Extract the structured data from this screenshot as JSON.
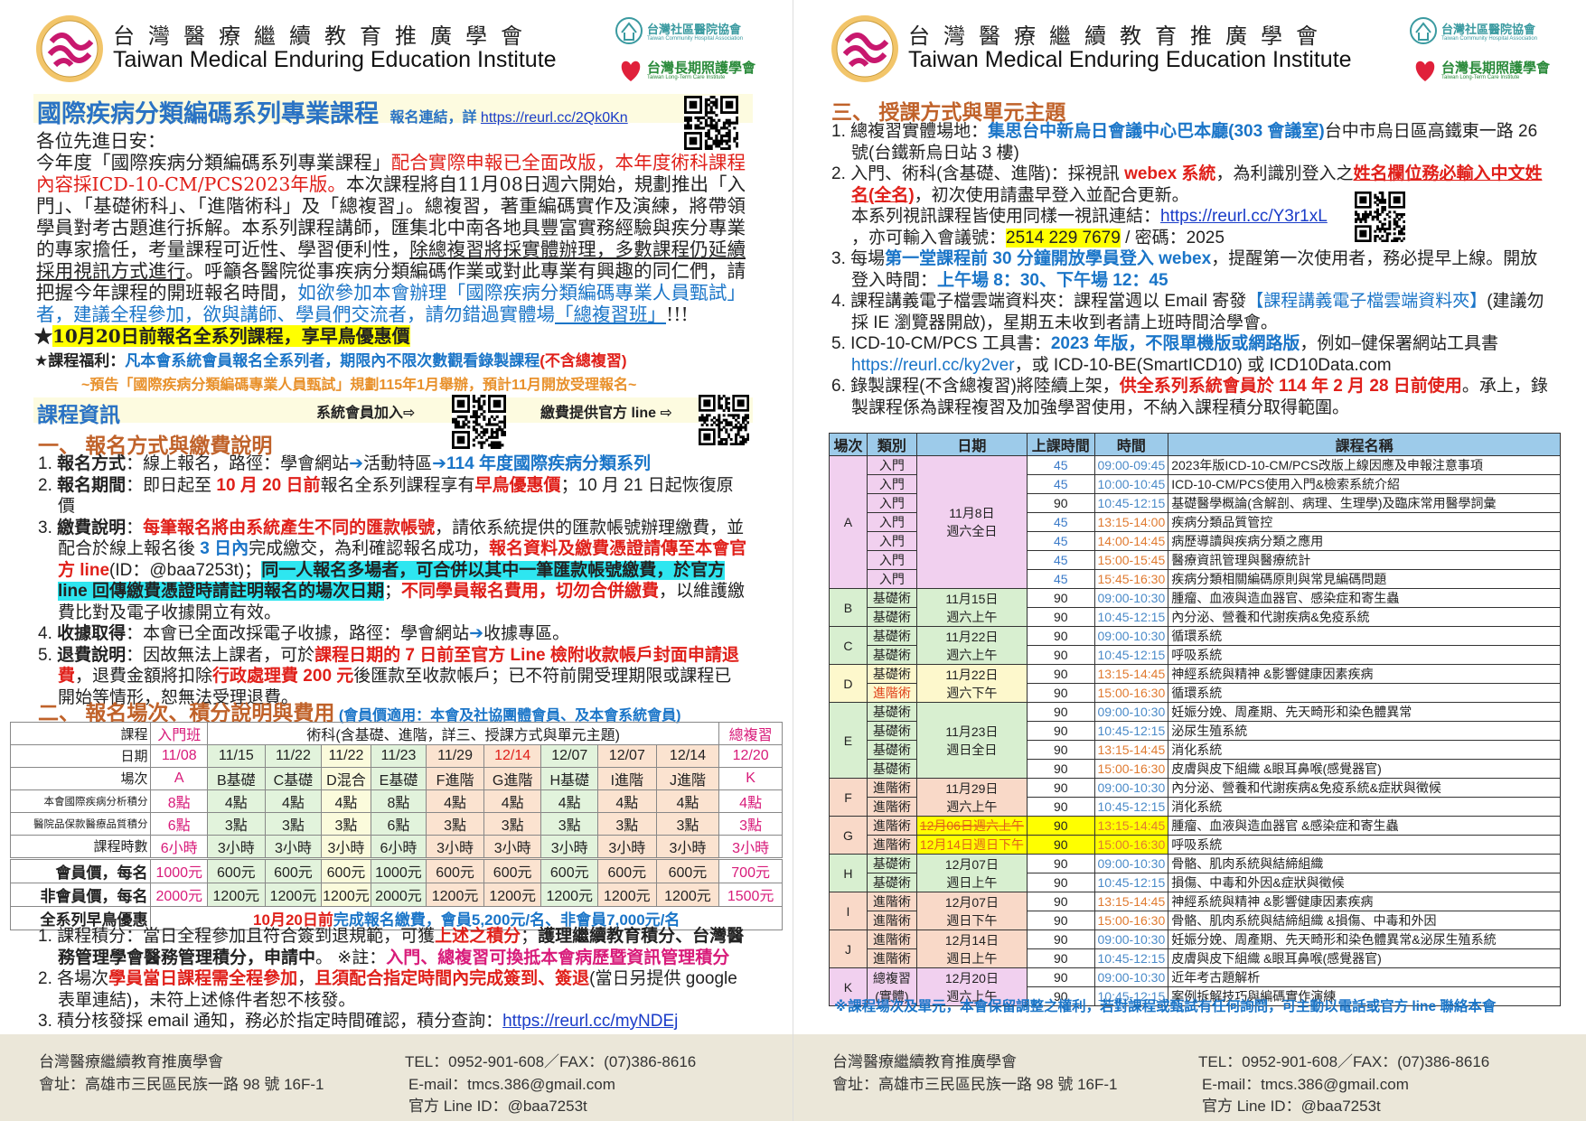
{
  "org": {
    "name_cn": "台灣醫療繼續教育推廣學會",
    "name_en": "Taiwan Medical Enduring Education Institute",
    "partner1_cn": "台灣社區醫院協會",
    "partner1_en": "Taiwan Community Hospital Association",
    "partner2_cn": "台灣長期照護學會",
    "partner2_en": "Taiwan Long-Term Care Institute"
  },
  "colors": {
    "title_blue": "#2a73c4",
    "section_orange": "#c0622a",
    "red": "#e0201a",
    "blue": "#1a75c8",
    "footer_bg": "#ebe7d9"
  },
  "left": {
    "title": "國際疾病分類編碼系列專業課程",
    "reg_label": "報名連結，詳",
    "reg_link": "https://reurl.cc/2Qk0Kn",
    "greeting": "各位先進日安：",
    "intro": [
      {
        "t": "今年度「國際疾病分類編碼系列專業課程」"
      },
      {
        "t": "配合實際申報已全面改版，本年度術科課程內容採ICD-10-CM/PCS2023年版。",
        "c": "red"
      },
      {
        "t": "本次課程將自11月08日週六開始，規劃推出「入門」、「基礎術科」、「進階術科」及「總複習」。總複習，著重編碼實作及演練，將帶領學員對考古題進行拆解。本系列課程講師，匯集北中南各地具豐富實務經驗與疾分專業的專家擔任，考量課程可近性、學習便利性，"
      },
      {
        "t": "除總複習將採實體辦理，多數課程仍延續採用視訊方式進行",
        "c": "u"
      },
      {
        "t": "。呼籲各醫院從事疾病分類編碼作業或對此專業有興趣的同仁們，請把握今年課程的開班報名時間，"
      },
      {
        "t": "如欲參加本會辦理「國際疾病分類編碼專業人員甄試」者，建議全程參加，欲與講師、學員們交流者，請勿錯過實體場",
        "c": "blue"
      },
      {
        "t": "「總複習班」",
        "c": "blue u"
      },
      {
        "t": "!!!"
      }
    ],
    "early_bird": [
      {
        "t": "★"
      },
      {
        "t": "10月20日前報名全系列課程，享早鳥優惠價",
        "c": "hly"
      }
    ],
    "benefit": [
      {
        "t": "★課程福利：",
        "c": "b"
      },
      {
        "t": "凡本會系統會員報名全系列者，期限內不限次數觀看錄製課程",
        "c": "blue b"
      },
      {
        "t": "(不含總複習)",
        "c": "red b"
      }
    ],
    "notice": "~預告「國際疾病分類編碼專業人員甄試」規劃115年1月舉辦，預計11月開放受理報名~",
    "info_bar": {
      "title": "課程資訊",
      "member_join": "系統會員加入⇨",
      "line_pay": "繳費提供官方 line ⇨"
    },
    "section1": {
      "heading": "一、 報名方式與繳費說明",
      "items": [
        [
          {
            "t": "1. "
          },
          {
            "t": "報名方式",
            "c": "b"
          },
          {
            "t": "：線上報名，路徑：學會網站"
          },
          {
            "t": "➔",
            "c": "blue b"
          },
          {
            "t": "活動特區"
          },
          {
            "t": "➔114 年度國際疾病分類系列",
            "c": "blue b"
          }
        ],
        [
          {
            "t": "2. "
          },
          {
            "t": "報名期間",
            "c": "b"
          },
          {
            "t": "：即日起至 "
          },
          {
            "t": "10 月 20 日前",
            "c": "red b"
          },
          {
            "t": "報名全系列課程享有"
          },
          {
            "t": "早鳥優惠價",
            "c": "red b"
          },
          {
            "t": "；10 月 21 日起恢復原價"
          }
        ],
        [
          {
            "t": "3. "
          },
          {
            "t": "繳費說明",
            "c": "b"
          },
          {
            "t": "："
          },
          {
            "t": "每筆報名將由系統產生不同的匯款帳號",
            "c": "red b"
          },
          {
            "t": "，請依系統提供的匯款帳號辦理繳費，並配合於線上報名後 "
          },
          {
            "t": "3 日內",
            "c": "blue b"
          },
          {
            "t": "完成繳交，為利確認報名成功，"
          },
          {
            "t": "報名資料及繳費憑證請傳至本會官方 line",
            "c": "red b"
          },
          {
            "t": "(ID：@baa7253t)；"
          },
          {
            "t": "同一人報名多場者，可合併以其中一筆匯款帳號繳費，於官方 line 回傳繳費憑證時請註明報名的場次日期",
            "c": "hlc b"
          },
          {
            "t": "；"
          },
          {
            "t": "不同學員報名費用，切勿合併繳費",
            "c": "red b"
          },
          {
            "t": "，以維護繳費比對及電子收據開立有效。"
          }
        ],
        [
          {
            "t": "4. "
          },
          {
            "t": "收據取得",
            "c": "b"
          },
          {
            "t": "：本會已全面改採電子收據，路徑：學會網站"
          },
          {
            "t": "➔",
            "c": "blue b"
          },
          {
            "t": "收據專區。"
          }
        ],
        [
          {
            "t": "5. "
          },
          {
            "t": "退費說明",
            "c": "b"
          },
          {
            "t": "：因故無法上課者，可於"
          },
          {
            "t": "課程日期的 7 日前至官方 Line 檢附收款帳戶封面申請退費",
            "c": "red b"
          },
          {
            "t": "，退費金額將扣除"
          },
          {
            "t": "行政處理費 200 元",
            "c": "red b"
          },
          {
            "t": "後匯款至收款帳戶；已不符前開受理期限或課程已開始等情形，恕無法受理退費。"
          }
        ]
      ]
    },
    "section2": {
      "heading": "二、 報名場次、積分說明與費用",
      "sub": "(會員價適用：本會及社協團體會員、及本會系統會員)"
    },
    "fee_table": {
      "row_labels": [
        "課程",
        "日期",
        "場次",
        "本會國際疾病分析積分",
        "醫院品保款醫療品質積分",
        "課程時數",
        "會員價，每名",
        "非會員價，每名",
        "全系列早鳥優惠"
      ],
      "group_intro": "入門班",
      "group_skill": "術科(含基礎、進階，詳三、授課方式與單元主題)",
      "group_review": "總複習",
      "columns": [
        {
          "date": "11/08",
          "session": "A",
          "pts1": "8點",
          "pts2": "6點",
          "hours": "6小時",
          "member": "1000元",
          "nonmember": "2000元",
          "tone": "intro"
        },
        {
          "date": "11/15",
          "session": "B基礎",
          "pts1": "4點",
          "pts2": "3點",
          "hours": "3小時",
          "member": "600元",
          "nonmember": "1200元",
          "tone": "green"
        },
        {
          "date": "11/22",
          "session": "C基礎",
          "pts1": "4點",
          "pts2": "3點",
          "hours": "3小時",
          "member": "600元",
          "nonmember": "1200元",
          "tone": "green"
        },
        {
          "date": "11/22",
          "session": "D混合",
          "pts1": "4點",
          "pts2": "3點",
          "hours": "3小時",
          "member": "600元",
          "nonmember": "1200元",
          "tone": "yellow"
        },
        {
          "date": "11/23",
          "session": "E基礎",
          "pts1": "8點",
          "pts2": "6點",
          "hours": "6小時",
          "member": "1000元",
          "nonmember": "2000元",
          "tone": "green"
        },
        {
          "date": "11/29",
          "session": "F進階",
          "pts1": "4點",
          "pts2": "3點",
          "hours": "3小時",
          "member": "600元",
          "nonmember": "1200元",
          "tone": "peach"
        },
        {
          "date": "12/14",
          "session": "G進階",
          "pts1": "4點",
          "pts2": "3點",
          "hours": "3小時",
          "member": "600元",
          "nonmember": "1200元",
          "tone": "peach",
          "date_red": true
        },
        {
          "date": "12/07",
          "session": "H基礎",
          "pts1": "4點",
          "pts2": "3點",
          "hours": "3小時",
          "member": "600元",
          "nonmember": "1200元",
          "tone": "green"
        },
        {
          "date": "12/07",
          "session": "I進階",
          "pts1": "4點",
          "pts2": "3點",
          "hours": "3小時",
          "member": "600元",
          "nonmember": "1200元",
          "tone": "peach"
        },
        {
          "date": "12/14",
          "session": "J進階",
          "pts1": "4點",
          "pts2": "3點",
          "hours": "3小時",
          "member": "600元",
          "nonmember": "1200元",
          "tone": "peach"
        },
        {
          "date": "12/20",
          "session": "K",
          "pts1": "4點",
          "pts2": "3點",
          "hours": "3小時",
          "member": "700元",
          "nonmember": "1500元",
          "tone": "review"
        }
      ],
      "early_bird": [
        {
          "t": "10月20日前",
          "c": "red b"
        },
        {
          "t": "完成報名繳費，會員5,200元/名、非會員7,000元/名",
          "c": "blue b"
        }
      ]
    },
    "notes": [
      [
        {
          "t": "1. 課程積分：當日全程參加且符合簽到退規範，可獲"
        },
        {
          "t": "上述之積分",
          "c": "red b"
        },
        {
          "t": "；"
        },
        {
          "t": "護理繼續教育積分、台灣醫務管理學會醫務管理積分，申請中",
          "c": "b"
        },
        {
          "t": "。 ※註："
        },
        {
          "t": "入門、總複習可換抵本會病歷暨資訊管理積分",
          "c": "magenta b"
        }
      ],
      [
        {
          "t": "2. 各場次"
        },
        {
          "t": "學員當日課程需全程參加",
          "c": "red b"
        },
        {
          "t": "，"
        },
        {
          "t": "且須配合指定時間內完成簽到、簽退",
          "c": "red b"
        },
        {
          "t": "(當日另提供 google 表單連結)，未符上述條件者恕不核發。"
        }
      ],
      [
        {
          "t": "3. 積分核發採 email 通知，務必於指定時間確認，積分查詢："
        },
        {
          "t": "https://reurl.cc/myNDEj",
          "c": "link"
        }
      ]
    ]
  },
  "right": {
    "section3": {
      "heading": "三、 授課方式與單元主題",
      "items": [
        [
          {
            "t": "1. 總複習實體場地："
          },
          {
            "t": "集思台中新烏日會議中心巴本廳(303 會議室)",
            "c": "blue b"
          },
          {
            "t": "台中市烏日區高鐵東一路 26 號(台鐵新烏日站 3 樓)"
          }
        ],
        [
          {
            "t": "2. 入門、術科(含基礎、進階)：採視訊 "
          },
          {
            "t": "webex 系統",
            "c": "red b"
          },
          {
            "t": "，為利識別登入之"
          },
          {
            "t": "姓名欄位務必輸入中文姓名(全名)",
            "c": "red b u"
          },
          {
            "t": "，初次使用請盡早登入並配合更新。"
          }
        ],
        [
          {
            "t": "本系列視訊課程皆使用同樣一視訊連結："
          },
          {
            "t": "https://reurl.cc/Y3r1xL",
            "c": "link"
          }
        ],
        [
          {
            "t": "，亦可輸入會議號："
          },
          {
            "t": "2514 229 7679",
            "c": "hly"
          },
          {
            "t": " / 密碼：2025"
          }
        ],
        [
          {
            "t": "3. 每場"
          },
          {
            "t": "第一堂課程前 30 分鐘開放學員登入 webex",
            "c": "blue b"
          },
          {
            "t": "，提醒第一次使用者，務必提早上線。開放登入時間："
          },
          {
            "t": "上午場 8：30、下午場 12：45",
            "c": "blue b"
          }
        ],
        [
          {
            "t": "4. 課程講義電子檔雲端資料夾：課程當週以 Email 寄發"
          },
          {
            "t": "【課程講義電子檔雲端資料夾】",
            "c": "blue"
          },
          {
            "t": "(建議勿採 IE 瀏覽器開啟)，星期五未收到者請上班時間洽學會。"
          }
        ],
        [
          {
            "t": "5. ICD-10-CM/PCS 工具書："
          },
          {
            "t": "2023 年版，不限單機版或網路版",
            "c": "blue b"
          },
          {
            "t": "，例如–健保署網站工具書 "
          },
          {
            "t": "https://reurl.cc/ky2ver",
            "c": "blue"
          },
          {
            "t": "，或 ICD-10-BE(SmartICD10) 或 ICD10Data.com"
          }
        ],
        [
          {
            "t": "6. 錄製課程(不含總複習)將陸續上架，"
          },
          {
            "t": "供全系列系統會員於 114 年 2 月 28 日前使用",
            "c": "red b"
          },
          {
            "t": "。承上，錄製課程係為課程複習及加強學習使用，不納入課程積分取得範圍。"
          }
        ]
      ]
    },
    "schedule": {
      "headers": [
        "場次",
        "類別",
        "日期",
        "上課時間",
        "時間",
        "課程名稱"
      ],
      "sessions": [
        {
          "id": "A",
          "tone": "pink",
          "date": [
            "11月8日",
            "週六全日"
          ],
          "rows": [
            [
              "入門",
              "45",
              "09:00-09:45",
              "2023年版ICD-10-CM/PCS改版上線因應及申報注意事項"
            ],
            [
              "入門",
              "45",
              "10:00-10:45",
              "ICD-10-CM/PCS使用入門&檢索系統介紹"
            ],
            [
              "入門",
              "90",
              "10:45-12:15",
              "基礎醫學概論(含解剖、病理、生理學)及臨床常用醫學詞彙"
            ],
            [
              "入門",
              "45",
              "13:15-14:00",
              "疾病分類品質管控"
            ],
            [
              "入門",
              "45",
              "14:00-14:45",
              "病歷導讀與疾病分類之應用"
            ],
            [
              "入門",
              "45",
              "15:00-15:45",
              "醫療資訊管理與醫療統計"
            ],
            [
              "入門",
              "45",
              "15:45-16:30",
              "疾病分類相關編碼原則與常見編碼問題"
            ]
          ]
        },
        {
          "id": "B",
          "tone": "green",
          "date": [
            "11月15日",
            "週六上午"
          ],
          "rows": [
            [
              "基礎術",
              "90",
              "09:00-10:30",
              "腫瘤、血液與造血器官、感染症和寄生蟲"
            ],
            [
              "基礎術",
              "90",
              "10:45-12:15",
              "內分泌、營養和代謝疾病&免疫系統"
            ]
          ]
        },
        {
          "id": "C",
          "tone": "green",
          "date": [
            "11月22日",
            "週六上午"
          ],
          "rows": [
            [
              "基礎術",
              "90",
              "09:00-10:30",
              "循環系統"
            ],
            [
              "基礎術",
              "90",
              "10:45-12:15",
              "呼吸系統"
            ]
          ]
        },
        {
          "id": "D",
          "tone": "yellow",
          "date": [
            "11月22日",
            "週六下午"
          ],
          "rows": [
            [
              "基礎術",
              "90",
              "13:15-14:45",
              "神經系統與精神 &影響健康因素疾病"
            ],
            [
              "進階術",
              "90",
              "15:00-16:30",
              "循環系統"
            ]
          ]
        },
        {
          "id": "E",
          "tone": "green",
          "date": [
            "11月23日",
            "週日全日"
          ],
          "rows": [
            [
              "基礎術",
              "90",
              "09:00-10:30",
              "妊娠分娩、周產期、先天畸形和染色體異常"
            ],
            [
              "基礎術",
              "90",
              "10:45-12:15",
              "泌尿生殖系統"
            ],
            [
              "基礎術",
              "90",
              "13:15-14:45",
              "消化系統"
            ],
            [
              "基礎術",
              "90",
              "15:00-16:30",
              "皮膚與皮下組織 &眼耳鼻喉(感覺器官)"
            ]
          ]
        },
        {
          "id": "F",
          "tone": "peach",
          "date": [
            "11月29日",
            "週六上午"
          ],
          "rows": [
            [
              "進階術",
              "90",
              "09:00-10:30",
              "內分泌、營養和代謝疾病&免疫系統&症狀與徵候"
            ],
            [
              "進階術",
              "90",
              "10:45-12:15",
              "消化系統"
            ]
          ]
        },
        {
          "id": "G",
          "tone": "peach",
          "highlight": true,
          "date_old": "12月06日週六上午",
          "date_new": "12月14日週日下午",
          "rows": [
            [
              "進階術",
              "90",
              "13:15-14:45",
              "腫瘤、血液與造血器官 &感染症和寄生蟲"
            ],
            [
              "進階術",
              "90",
              "15:00-16:30",
              "呼吸系統"
            ]
          ]
        },
        {
          "id": "H",
          "tone": "green",
          "date": [
            "12月07日",
            "週日上午"
          ],
          "rows": [
            [
              "基礎術",
              "90",
              "09:00-10:30",
              "骨骼、肌肉系統與結締組織"
            ],
            [
              "基礎術",
              "90",
              "10:45-12:15",
              "損傷、中毒和外因&症狀與徵候"
            ]
          ]
        },
        {
          "id": "I",
          "tone": "peach",
          "date": [
            "12月07日",
            "週日下午"
          ],
          "rows": [
            [
              "進階術",
              "90",
              "13:15-14:45",
              "神經系統與精神 &影響健康因素疾病"
            ],
            [
              "進階術",
              "90",
              "15:00-16:30",
              "骨骼、肌肉系統與結締組織 &損傷、中毒和外因"
            ]
          ]
        },
        {
          "id": "J",
          "tone": "peach",
          "date": [
            "12月14日",
            "週日上午"
          ],
          "rows": [
            [
              "進階術",
              "90",
              "09:00-10:30",
              "妊娠分娩、周產期、先天畸形和染色體異常&泌尿生殖系統"
            ],
            [
              "進階術",
              "90",
              "10:45-12:15",
              "皮膚與皮下組織 &眼耳鼻喉(感覺器官)"
            ]
          ]
        },
        {
          "id": "K",
          "tone": "pink",
          "type_label": [
            "總複習",
            "(實體)"
          ],
          "date": [
            "12月20日",
            "週六上午"
          ],
          "rows": [
            [
              "",
              "90",
              "09:00-10:30",
              "近年考古題解析"
            ],
            [
              "",
              "90",
              "10:45-12:15",
              "案例拆解技巧與編碼實作演練"
            ]
          ]
        }
      ]
    },
    "disclaimer": "※課程場次及單元，本會保留調整之權利，若對課程或甄試有任何詢問，可主動以電話或官方 line 聯絡本會"
  },
  "footer": {
    "org": "台灣醫療繼續教育推廣學會",
    "address": "會址：高雄市三民區民族一路 98 號 16F-1",
    "tel": "TEL：0952-901-608／FAX：(07)386-8616",
    "email": "E-mail：tmcs.386@gmail.com",
    "line": "官方 Line ID：@baa7253t"
  }
}
